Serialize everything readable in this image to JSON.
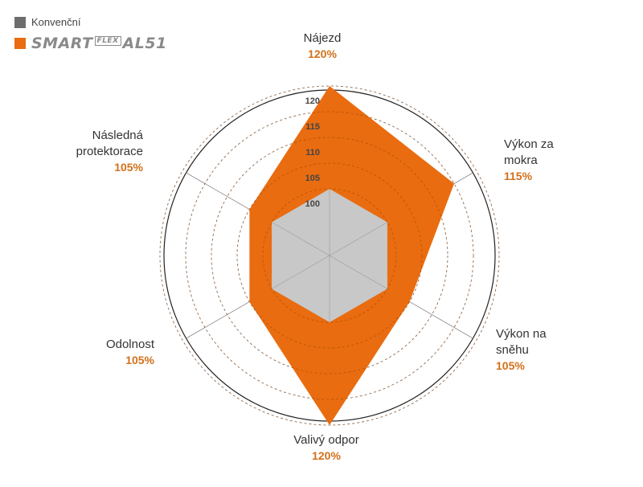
{
  "legend": {
    "conventional_label": "Konvenční",
    "brand_logo_text": "SMART FLEX AL51"
  },
  "colors": {
    "conventional": "#c8c8c8",
    "conventional_swatch": "#6d6d6d",
    "brand": "#e96c10",
    "value_label": "#d2701b",
    "category_label": "#333333",
    "circle_stroke": "#222222"
  },
  "chart_data": {
    "type": "radar",
    "categories": [
      "Nájezd",
      "Výkon za mokra",
      "Výkon na sněhu",
      "Valivý odpor",
      "Odolnost",
      "Následná protektorace"
    ],
    "category_lines": [
      [
        "Nájezd"
      ],
      [
        "Výkon za",
        "mokra"
      ],
      [
        "Výkon na",
        "sněhu"
      ],
      [
        "Valivý odpor"
      ],
      [
        "Odolnost"
      ],
      [
        "Následná",
        "protektorace"
      ]
    ],
    "value_labels": [
      "120%",
      "115%",
      "105%",
      "120%",
      "105%",
      "105%"
    ],
    "series": [
      {
        "name": "Konvenční",
        "values": [
          100,
          100,
          100,
          100,
          100,
          100
        ]
      },
      {
        "name": "SMART FLEX AL51",
        "values": [
          120,
          115,
          105,
          120,
          105,
          105
        ]
      }
    ],
    "r_ticks": [
      100,
      105,
      110,
      115,
      120
    ],
    "r_tick_labels": [
      "100",
      "105",
      "110",
      "115",
      "120"
    ]
  }
}
